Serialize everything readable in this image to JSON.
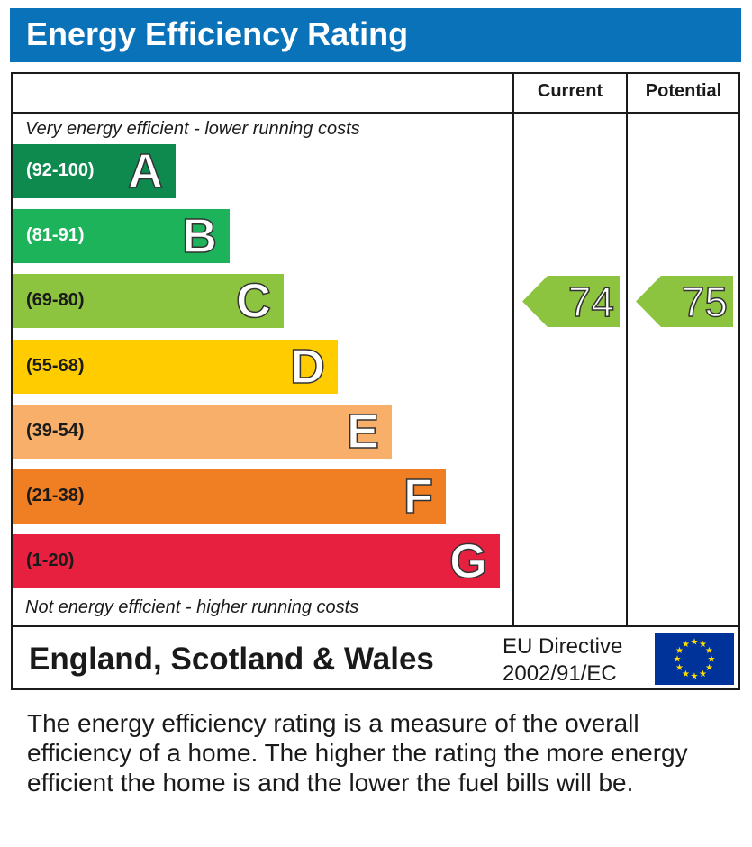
{
  "header": {
    "title": "Energy Efficiency Rating"
  },
  "table": {
    "col_current": "Current",
    "col_potential": "Potential",
    "top_note": "Very energy efficient - lower running costs",
    "bottom_note": "Not energy efficient - higher running costs"
  },
  "chart_data": {
    "type": "bar",
    "title": "Energy Efficiency Rating",
    "bands": [
      {
        "letter": "A",
        "range": "(92-100)",
        "color": "#0e8a4f",
        "range_color": "#ffffff"
      },
      {
        "letter": "B",
        "range": "(81-91)",
        "color": "#1cb35a",
        "range_color": "#ffffff"
      },
      {
        "letter": "C",
        "range": "(69-80)",
        "color": "#8cc43f",
        "range_color": "#1a1a1a"
      },
      {
        "letter": "D",
        "range": "(55-68)",
        "color": "#ffcc00",
        "range_color": "#1a1a1a"
      },
      {
        "letter": "E",
        "range": "(39-54)",
        "color": "#f8af6a",
        "range_color": "#1a1a1a"
      },
      {
        "letter": "F",
        "range": "(21-38)",
        "color": "#f07e22",
        "range_color": "#1a1a1a"
      },
      {
        "letter": "G",
        "range": "(1-20)",
        "color": "#e7203f",
        "range_color": "#1a1a1a"
      }
    ],
    "current": {
      "value": 74,
      "band": "C",
      "color": "#8cc43f"
    },
    "potential": {
      "value": 75,
      "band": "C",
      "color": "#8cc43f"
    }
  },
  "footer_row": {
    "region": "England, Scotland & Wales",
    "directive_line1": "EU Directive",
    "directive_line2": "2002/91/EC",
    "flag_color": "#003399",
    "star_color": "#ffdd00"
  },
  "description": "The energy efficiency rating is a measure of the overall efficiency of a home. The higher the rating the more energy efficient the home is and the lower the fuel bills will be."
}
